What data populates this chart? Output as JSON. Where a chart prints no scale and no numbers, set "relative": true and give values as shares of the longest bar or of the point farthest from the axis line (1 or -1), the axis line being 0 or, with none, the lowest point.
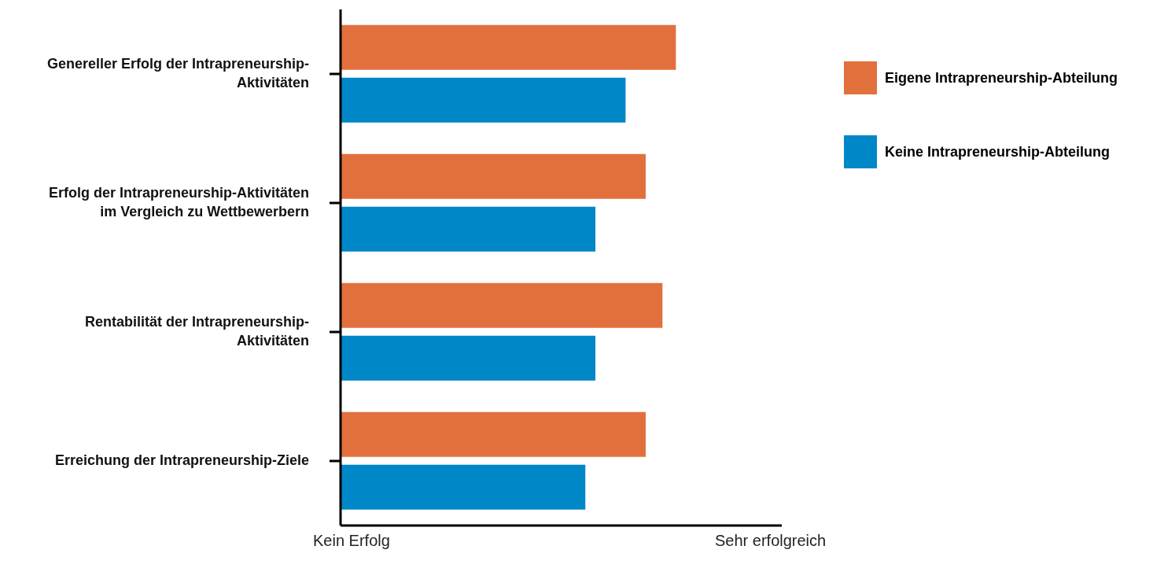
{
  "chart_data": {
    "type": "bar",
    "orientation": "horizontal",
    "relative": true,
    "categories": [
      "Genereller Erfolg der Intrapreneurship-Aktivitäten",
      "Erfolg der Intrapreneurship-Aktivitäten im Vergleich zu Wettbewerbern",
      "Rentabilität der Intrapreneurship-Aktivitäten",
      "Erreichung der Intrapreneurship-Ziele"
    ],
    "series": [
      {
        "name": "Eigene Intrapreneurship-Abteilung",
        "color": "#e2703d",
        "values": [
          1,
          0.91,
          0.96,
          0.91
        ]
      },
      {
        "name": "Keine Intrapreneurship-Abteilung",
        "color": "#0087c8",
        "values": [
          0.85,
          0.76,
          0.76,
          0.73
        ]
      }
    ],
    "annotations": [
      "Kein Erfolg",
      "Sehr erfolgreich"
    ],
    "grid": false,
    "legend": "top right"
  }
}
